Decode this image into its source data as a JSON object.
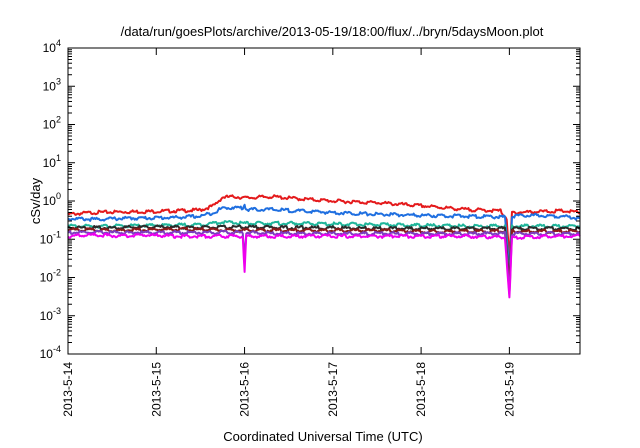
{
  "chart_data": {
    "type": "line",
    "title": "/data/run/goesPlots/archive/2013-05-19/18:00/flux/../bryn/5daysMoon.plot",
    "xlabel": "Coordinated Universal Time (UTC)",
    "ylabel": "cSv/day",
    "y_scale": "log",
    "ylim": [
      0.0001,
      10000
    ],
    "xlim": [
      0,
      5.8
    ],
    "x_ticks": [
      {
        "value": 0,
        "label": "2013-5-14"
      },
      {
        "value": 1,
        "label": "2013-5-15"
      },
      {
        "value": 2,
        "label": "2013-5-16"
      },
      {
        "value": 3,
        "label": "2013-5-17"
      },
      {
        "value": 4,
        "label": "2013-5-18"
      },
      {
        "value": 5,
        "label": "2013-5-19"
      }
    ],
    "y_ticks": [
      {
        "value": 0.0001,
        "base": "10",
        "exp": "-4"
      },
      {
        "value": 0.001,
        "base": "10",
        "exp": "-3"
      },
      {
        "value": 0.01,
        "base": "10",
        "exp": "-2"
      },
      {
        "value": 0.1,
        "base": "10",
        "exp": "-1"
      },
      {
        "value": 1,
        "base": "10",
        "exp": "0"
      },
      {
        "value": 10,
        "base": "10",
        "exp": "1"
      },
      {
        "value": 100,
        "base": "10",
        "exp": "2"
      },
      {
        "value": 1000,
        "base": "10",
        "exp": "3"
      },
      {
        "value": 10000,
        "base": "10",
        "exp": "4"
      }
    ],
    "grid": false,
    "series": [
      {
        "color": "#e41a1c",
        "points": [
          [
            0,
            0.45
          ],
          [
            0.3,
            0.5
          ],
          [
            0.6,
            0.52
          ],
          [
            0.9,
            0.53
          ],
          [
            1.2,
            0.55
          ],
          [
            1.5,
            0.58
          ],
          [
            1.65,
            0.75
          ],
          [
            1.75,
            1.25
          ],
          [
            1.9,
            1.3
          ],
          [
            2.0,
            1.2
          ],
          [
            2.3,
            1.3
          ],
          [
            2.6,
            1.15
          ],
          [
            3.0,
            1.0
          ],
          [
            3.5,
            0.9
          ],
          [
            4.0,
            0.75
          ],
          [
            4.5,
            0.6
          ],
          [
            4.9,
            0.55
          ],
          [
            4.97,
            0.35
          ],
          [
            5.0,
            0.03
          ],
          [
            5.03,
            0.5
          ],
          [
            5.3,
            0.52
          ],
          [
            5.6,
            0.55
          ],
          [
            5.8,
            0.5
          ]
        ]
      },
      {
        "color": "#1f6fe0",
        "points": [
          [
            0,
            0.35
          ],
          [
            0.3,
            0.33
          ],
          [
            0.6,
            0.35
          ],
          [
            0.9,
            0.36
          ],
          [
            1.2,
            0.37
          ],
          [
            1.5,
            0.4
          ],
          [
            1.65,
            0.5
          ],
          [
            1.75,
            0.65
          ],
          [
            1.9,
            0.68
          ],
          [
            1.98,
            0.65
          ],
          [
            2.0,
            0.8
          ],
          [
            2.02,
            0.6
          ],
          [
            2.3,
            0.6
          ],
          [
            2.6,
            0.55
          ],
          [
            3.0,
            0.5
          ],
          [
            3.5,
            0.45
          ],
          [
            4.0,
            0.42
          ],
          [
            4.5,
            0.4
          ],
          [
            4.95,
            0.38
          ],
          [
            5.0,
            0.015
          ],
          [
            5.03,
            0.4
          ],
          [
            5.3,
            0.42
          ],
          [
            5.6,
            0.4
          ],
          [
            5.8,
            0.35
          ]
        ]
      },
      {
        "color": "#1fb59a",
        "points": [
          [
            0,
            0.22
          ],
          [
            0.5,
            0.22
          ],
          [
            1.0,
            0.23
          ],
          [
            1.5,
            0.24
          ],
          [
            1.75,
            0.28
          ],
          [
            2.0,
            0.26
          ],
          [
            2.5,
            0.26
          ],
          [
            3.0,
            0.25
          ],
          [
            3.5,
            0.24
          ],
          [
            4.0,
            0.23
          ],
          [
            4.5,
            0.22
          ],
          [
            4.95,
            0.22
          ],
          [
            5.0,
            0.01
          ],
          [
            5.03,
            0.22
          ],
          [
            5.5,
            0.22
          ],
          [
            5.8,
            0.22
          ]
        ]
      },
      {
        "color": "#2b2b2b",
        "points": [
          [
            0,
            0.2
          ],
          [
            0.5,
            0.2
          ],
          [
            1.0,
            0.21
          ],
          [
            1.5,
            0.2
          ],
          [
            2.0,
            0.21
          ],
          [
            2.5,
            0.2
          ],
          [
            3.0,
            0.2
          ],
          [
            3.5,
            0.19
          ],
          [
            4.0,
            0.19
          ],
          [
            4.5,
            0.19
          ],
          [
            4.95,
            0.19
          ],
          [
            5.0,
            0.008
          ],
          [
            5.03,
            0.19
          ],
          [
            5.5,
            0.19
          ],
          [
            5.8,
            0.19
          ]
        ]
      },
      {
        "color": "#8b1a1a",
        "points": [
          [
            0,
            0.18
          ],
          [
            0.5,
            0.17
          ],
          [
            1.0,
            0.18
          ],
          [
            1.5,
            0.18
          ],
          [
            2.0,
            0.17
          ],
          [
            2.5,
            0.17
          ],
          [
            3.0,
            0.17
          ],
          [
            3.5,
            0.17
          ],
          [
            4.0,
            0.16
          ],
          [
            4.5,
            0.16
          ],
          [
            4.95,
            0.16
          ],
          [
            5.0,
            0.006
          ],
          [
            5.03,
            0.16
          ],
          [
            5.5,
            0.16
          ],
          [
            5.8,
            0.16
          ]
        ]
      },
      {
        "color": "#7b3fbf",
        "points": [
          [
            0,
            0.15
          ],
          [
            0.5,
            0.15
          ],
          [
            1.0,
            0.15
          ],
          [
            1.5,
            0.15
          ],
          [
            1.98,
            0.15
          ],
          [
            2.0,
            0.03
          ],
          [
            2.02,
            0.15
          ],
          [
            2.5,
            0.14
          ],
          [
            3.0,
            0.14
          ],
          [
            3.5,
            0.14
          ],
          [
            4.0,
            0.14
          ],
          [
            4.5,
            0.14
          ],
          [
            4.95,
            0.14
          ],
          [
            5.0,
            0.004
          ],
          [
            5.03,
            0.14
          ],
          [
            5.5,
            0.14
          ],
          [
            5.8,
            0.14
          ]
        ]
      },
      {
        "color": "#ee00ee",
        "points": [
          [
            0,
            0.12
          ],
          [
            0.3,
            0.13
          ],
          [
            0.6,
            0.12
          ],
          [
            0.9,
            0.13
          ],
          [
            1.2,
            0.12
          ],
          [
            1.5,
            0.12
          ],
          [
            1.98,
            0.12
          ],
          [
            2.0,
            0.013
          ],
          [
            2.02,
            0.12
          ],
          [
            2.5,
            0.12
          ],
          [
            3.0,
            0.12
          ],
          [
            3.5,
            0.12
          ],
          [
            4.0,
            0.12
          ],
          [
            4.5,
            0.12
          ],
          [
            4.95,
            0.11
          ],
          [
            5.0,
            0.0028
          ],
          [
            5.03,
            0.11
          ],
          [
            5.5,
            0.12
          ],
          [
            5.8,
            0.12
          ]
        ]
      }
    ]
  }
}
